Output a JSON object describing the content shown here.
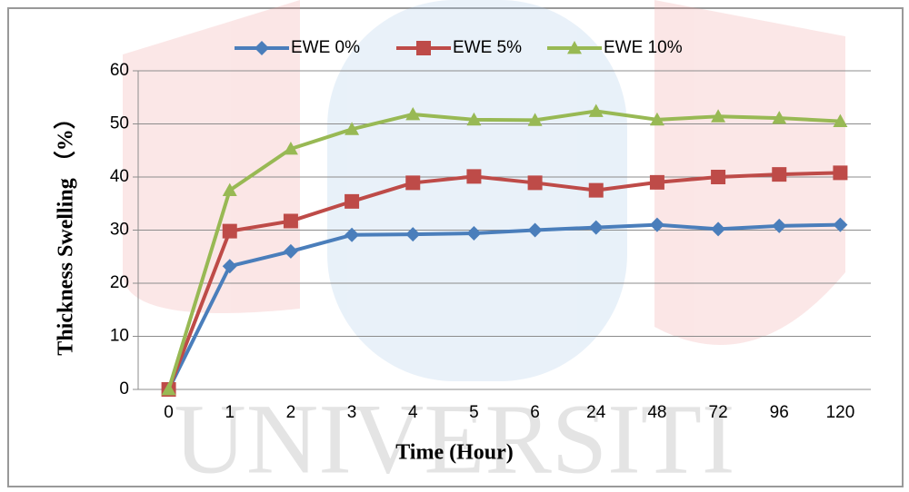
{
  "watermark": "UNIVERSITI",
  "chart_data": {
    "type": "line",
    "x_label": "Time (Hour)",
    "y_label": "Thickness Swelling （%）",
    "categories": [
      "0",
      "1",
      "2",
      "3",
      "4",
      "5",
      "6",
      "24",
      "48",
      "72",
      "96",
      "120"
    ],
    "series": [
      {
        "name": "EWE 0%",
        "color": "#4a7ebb",
        "marker": "diamond",
        "values": [
          0,
          23.2,
          26,
          29.1,
          29.2,
          29.4,
          30,
          30.5,
          31,
          30.2,
          30.8,
          31
        ]
      },
      {
        "name": "EWE 5%",
        "color": "#be4b48",
        "marker": "square",
        "values": [
          0,
          29.8,
          31.7,
          35.4,
          38.9,
          40.1,
          38.9,
          37.5,
          39,
          40,
          40.5,
          40.8
        ]
      },
      {
        "name": "EWE 10%",
        "color": "#98b954",
        "marker": "triangle",
        "values": [
          0,
          37.5,
          45.3,
          49,
          51.8,
          50.8,
          50.7,
          52.4,
          50.8,
          51.4,
          51.1,
          50.5
        ]
      }
    ],
    "ylim": [
      0,
      60
    ],
    "yticks": [
      0,
      10,
      20,
      30,
      40,
      50,
      60
    ],
    "grid": true,
    "legend": "top"
  }
}
